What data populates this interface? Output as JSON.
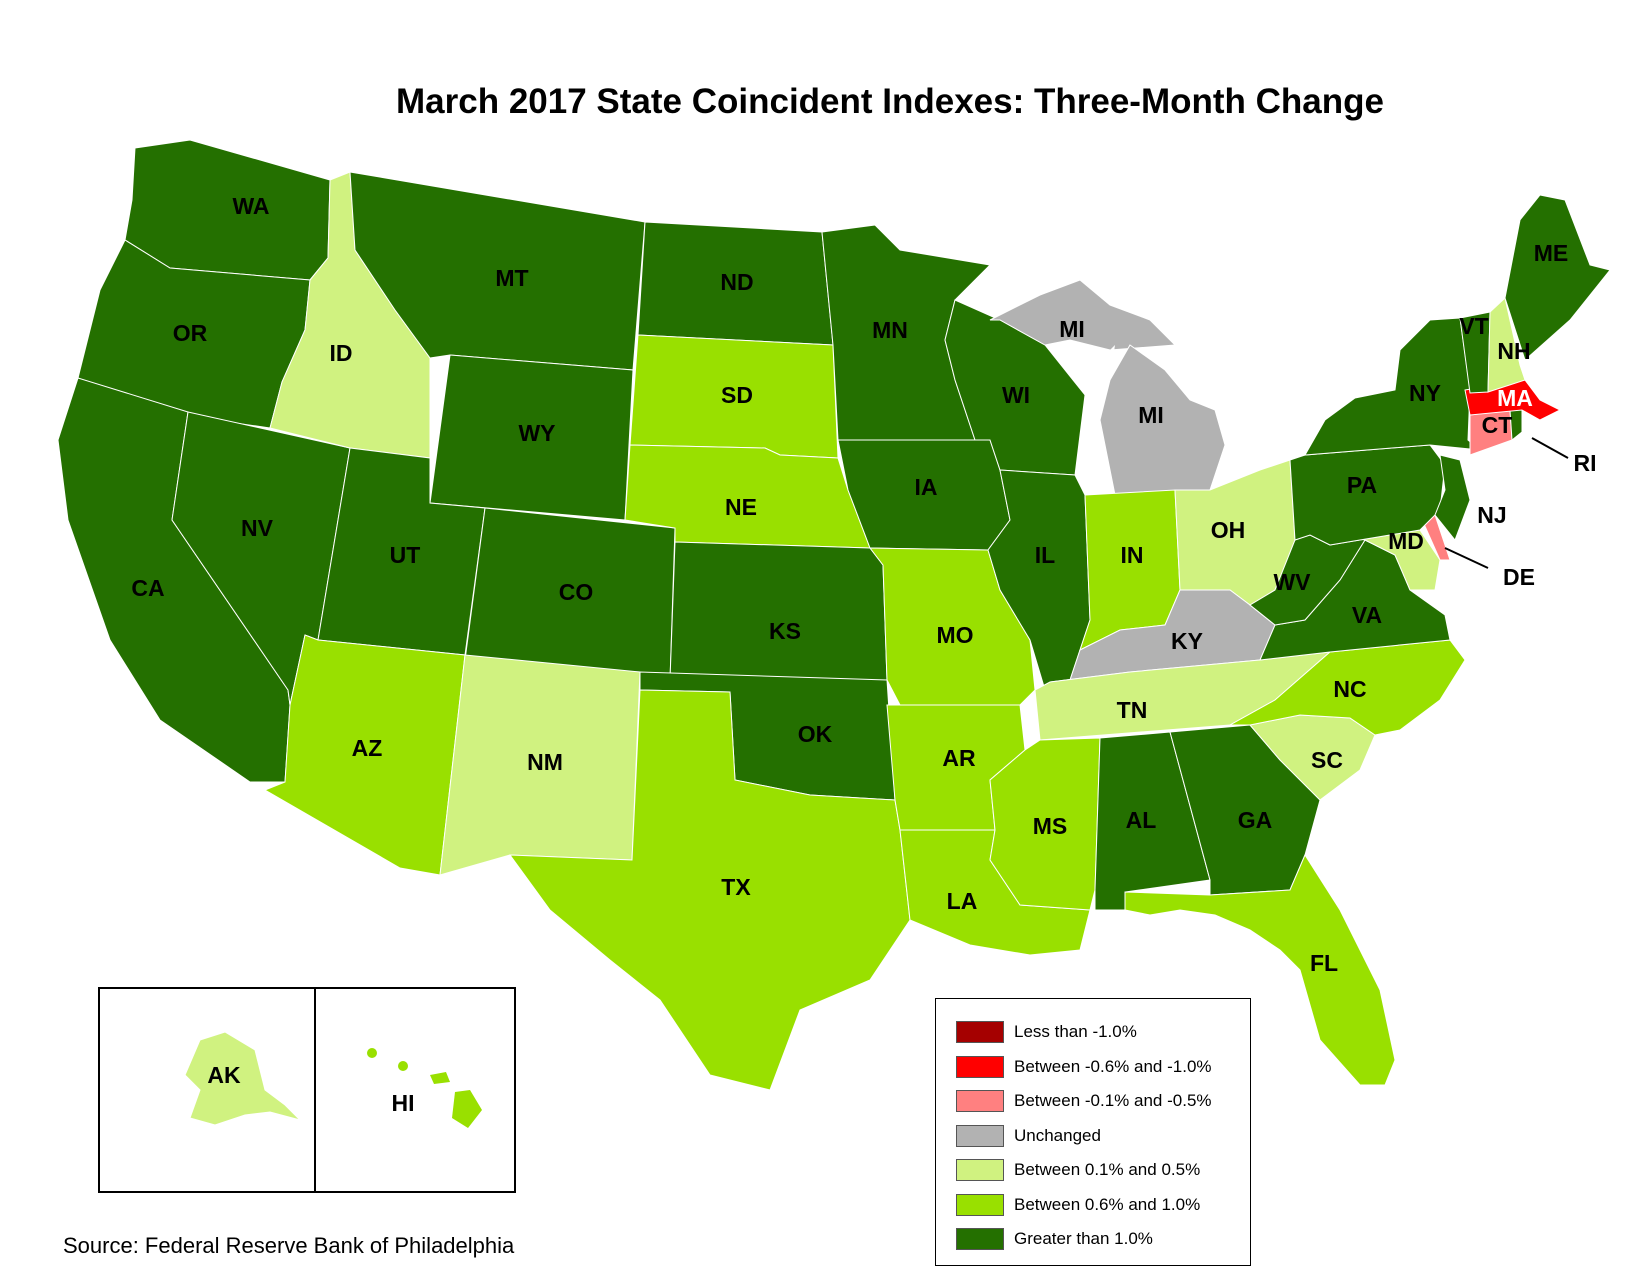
{
  "title": "March 2017 State Coincident Indexes: Three-Month Change",
  "source": "Source: Federal Reserve Bank of Philadelphia",
  "colors": {
    "lt_neg1": "#a50000",
    "neg06_neg1": "#ff0000",
    "neg01_neg05": "#ff8080",
    "unchanged": "#b2b2b2",
    "p01_05": "#d0f280",
    "p06_10": "#99e000",
    "gt1": "#247000",
    "border": "#ffffff"
  },
  "legend": [
    {
      "key": "lt_neg1",
      "label": "Less than -1.0%"
    },
    {
      "key": "neg06_neg1",
      "label": "Between -0.6% and -1.0%"
    },
    {
      "key": "neg01_neg05",
      "label": "Between -0.1% and -0.5%"
    },
    {
      "key": "unchanged",
      "label": "Unchanged"
    },
    {
      "key": "p01_05",
      "label": "Between 0.1% and 0.5%"
    },
    {
      "key": "p06_10",
      "label": "Between 0.6% and 1.0%"
    },
    {
      "key": "gt1",
      "label": "Greater than 1.0%"
    }
  ],
  "states": {
    "WA": "gt1",
    "OR": "gt1",
    "CA": "gt1",
    "ID": "p01_05",
    "NV": "gt1",
    "MT": "gt1",
    "WY": "gt1",
    "UT": "gt1",
    "CO": "gt1",
    "AZ": "p06_10",
    "NM": "p01_05",
    "ND": "gt1",
    "SD": "p06_10",
    "NE": "p06_10",
    "KS": "gt1",
    "OK": "gt1",
    "TX": "p06_10",
    "MN": "gt1",
    "IA": "gt1",
    "MO": "p06_10",
    "AR": "p06_10",
    "LA": "p06_10",
    "WI": "gt1",
    "IL": "gt1",
    "MI": "unchanged",
    "IN": "p06_10",
    "OH": "p01_05",
    "KY": "unchanged",
    "TN": "p01_05",
    "MS": "p06_10",
    "AL": "gt1",
    "GA": "gt1",
    "FL": "p06_10",
    "SC": "p01_05",
    "NC": "p06_10",
    "VA": "gt1",
    "WV": "gt1",
    "MD": "p01_05",
    "DE": "neg01_neg05",
    "PA": "gt1",
    "NJ": "gt1",
    "NY": "gt1",
    "CT": "neg01_neg05",
    "RI": "gt1",
    "MA": "neg06_neg1",
    "VT": "gt1",
    "NH": "p01_05",
    "ME": "gt1",
    "AK": "p01_05",
    "HI": "p06_10"
  },
  "labels": {
    "WA": "WA",
    "OR": "OR",
    "CA": "CA",
    "ID": "ID",
    "NV": "NV",
    "MT": "MT",
    "WY": "WY",
    "UT": "UT",
    "CO": "CO",
    "AZ": "AZ",
    "NM": "NM",
    "ND": "ND",
    "SD": "SD",
    "NE": "NE",
    "KS": "KS",
    "OK": "OK",
    "TX": "TX",
    "MN": "MN",
    "IA": "IA",
    "MO": "MO",
    "AR": "AR",
    "LA": "LA",
    "WI": "WI",
    "IL": "IL",
    "MI_UP": "MI",
    "MI": "MI",
    "IN": "IN",
    "OH": "OH",
    "KY": "KY",
    "TN": "TN",
    "MS": "MS",
    "AL": "AL",
    "GA": "GA",
    "FL": "FL",
    "SC": "SC",
    "NC": "NC",
    "VA": "VA",
    "WV": "WV",
    "MD": "MD",
    "DE": "DE",
    "PA": "PA",
    "NJ": "NJ",
    "NY": "NY",
    "CT": "CT",
    "RI": "RI",
    "MA": "MA",
    "VT": "VT",
    "NH": "NH",
    "ME": "ME",
    "AK": "AK",
    "HI": "HI"
  }
}
